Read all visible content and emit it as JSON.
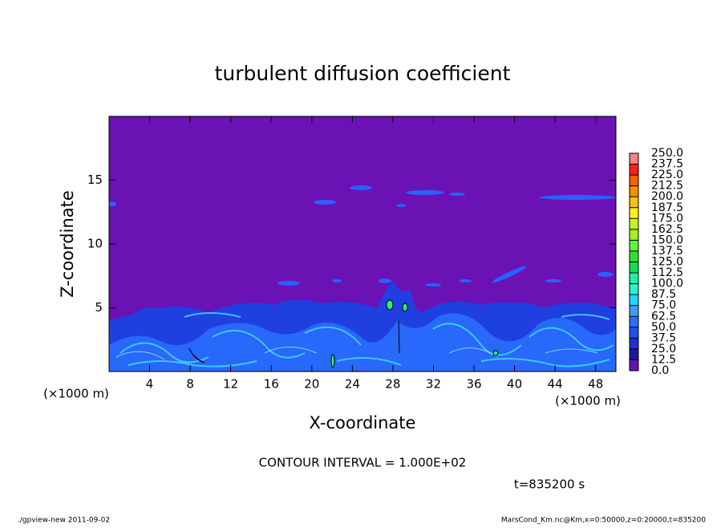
{
  "chart_data": {
    "type": "contour",
    "title": "turbulent diffusion coefficient",
    "xlabel": "X-coordinate",
    "ylabel": "Z-coordinate",
    "yunit": "(×1000 m)",
    "xunit": "(×1000 m)",
    "xlim": [
      0,
      50
    ],
    "xticks": [
      4,
      8,
      12,
      16,
      20,
      24,
      28,
      32,
      36,
      40,
      44,
      48
    ],
    "ylim": [
      0,
      20
    ],
    "yticks": [
      5,
      10,
      15
    ],
    "colorbar": {
      "levels": [
        {
          "value": 0,
          "label": "0.0"
        },
        {
          "value": 12.5,
          "label": "12.5"
        },
        {
          "value": 25,
          "label": "25.0"
        },
        {
          "value": 37.5,
          "label": "37.5"
        },
        {
          "value": 50,
          "label": "50.0"
        },
        {
          "value": 62.5,
          "label": "62.5"
        },
        {
          "value": 75,
          "label": "75.0"
        },
        {
          "value": 87.5,
          "label": "87.5"
        },
        {
          "value": 100,
          "label": "100.0"
        },
        {
          "value": 112.5,
          "label": "112.5"
        },
        {
          "value": 125,
          "label": "125.0"
        },
        {
          "value": 137.5,
          "label": "137.5"
        },
        {
          "value": 150,
          "label": "150.0"
        },
        {
          "value": 162.5,
          "label": "162.5"
        },
        {
          "value": 175,
          "label": "175.0"
        },
        {
          "value": 187.5,
          "label": "187.5"
        },
        {
          "value": 200,
          "label": "200.0"
        },
        {
          "value": 212.5,
          "label": "212.5"
        },
        {
          "value": 225,
          "label": "225.0"
        },
        {
          "value": 237.5,
          "label": "237.5"
        },
        {
          "value": 250,
          "label": "250.0"
        }
      ],
      "colors": [
        "#6a12b4",
        "#1a1aa0",
        "#1f2fd8",
        "#2050f0",
        "#2a70ff",
        "#3c9cff",
        "#20d8ff",
        "#30f0d0",
        "#20f0a0",
        "#10e050",
        "#30e030",
        "#60f040",
        "#a0f020",
        "#c8f020",
        "#f8f020",
        "#f8c010",
        "#f89000",
        "#f86000",
        "#f82020",
        "#f88080"
      ]
    },
    "contour_interval": "CONTOUR INTERVAL = 1.000E+02",
    "time_label": "t=835200 s",
    "footer_left": "./gpview-new  2011-09-02",
    "footer_right": "MarsCond_Km.nc@Km,x=0:50000,z=0:20000,t=835200"
  }
}
